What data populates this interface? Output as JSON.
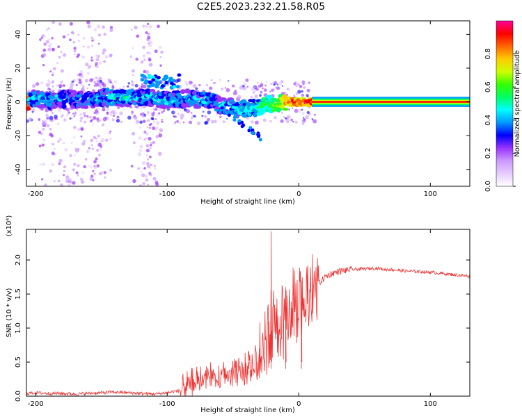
{
  "title": "C2E5.2023.232.21.58.R05",
  "chart_data": [
    {
      "type": "heatmap",
      "title": "C2E5.2023.232.21.58.R05",
      "xlabel": "Height of straight line (km)",
      "ylabel": "Frequency (Hz)",
      "xlim": [
        -207,
        130
      ],
      "ylim": [
        -50,
        48
      ],
      "xticks": [
        -200,
        -100,
        0,
        100
      ],
      "yticks": [
        -40,
        -20,
        0,
        20,
        40
      ],
      "xtick_labels": [
        "-200",
        "-100",
        "0",
        "100"
      ],
      "ytick_labels": [
        "-40",
        "-20",
        "0",
        "20",
        "40"
      ],
      "colorbar": {
        "label": "Normalized spectral amplitude",
        "range": [
          0,
          1
        ],
        "ticks": [
          0.0,
          0.2,
          0.4,
          0.6,
          0.8
        ],
        "tick_labels": [
          "0.0",
          "0.2",
          "0.4",
          "0.6",
          "0.8"
        ],
        "colormap": [
          "#ffffff",
          "#e6ccff",
          "#cc99ff",
          "#9933ff",
          "#0000ff",
          "#0099ff",
          "#00ffff",
          "#00ff66",
          "#33ff00",
          "#ccff00",
          "#ffcc00",
          "#ff6600",
          "#ff0000",
          "#ff0099"
        ]
      },
      "ridge": [
        {
          "x": -205,
          "y": 2,
          "amp": 0.45
        },
        {
          "x": -190,
          "y": 1,
          "amp": 0.4
        },
        {
          "x": -175,
          "y": 2,
          "amp": 0.38
        },
        {
          "x": -160,
          "y": 1,
          "amp": 0.36
        },
        {
          "x": -145,
          "y": 3,
          "amp": 0.42
        },
        {
          "x": -130,
          "y": 2,
          "amp": 0.44
        },
        {
          "x": -115,
          "y": 3,
          "amp": 0.4
        },
        {
          "x": -100,
          "y": 1,
          "amp": 0.42
        },
        {
          "x": -85,
          "y": 2,
          "amp": 0.4
        },
        {
          "x": -70,
          "y": 1,
          "amp": 0.42
        },
        {
          "x": -60,
          "y": -2,
          "amp": 0.38
        },
        {
          "x": -50,
          "y": -3,
          "amp": 0.4
        },
        {
          "x": -40,
          "y": -4,
          "amp": 0.45
        },
        {
          "x": -30,
          "y": -3,
          "amp": 0.5
        },
        {
          "x": -20,
          "y": -1,
          "amp": 0.6
        },
        {
          "x": -10,
          "y": 0,
          "amp": 0.8
        },
        {
          "x": 0,
          "y": 0,
          "amp": 0.85
        },
        {
          "x": 10,
          "y": 0,
          "amp": 0.9
        },
        {
          "x": 130,
          "y": 0,
          "amp": 0.95
        }
      ]
    },
    {
      "type": "line",
      "xlabel": "Height of straight line (km)",
      "ylabel": "SNR (10 * v/v)",
      "y_multiplier": "(x10⁴)",
      "xlim": [
        -207,
        130
      ],
      "ylim": [
        0,
        2.45
      ],
      "xticks": [
        -200,
        -100,
        0,
        100
      ],
      "yticks": [
        0.0,
        0.5,
        1.0,
        1.5,
        2.0
      ],
      "xtick_labels": [
        "-200",
        "-100",
        "0",
        "100"
      ],
      "ytick_labels": [
        "0.0",
        "0.5",
        "1.0",
        "1.5",
        "2.0"
      ],
      "series": [
        {
          "color": "#ee3333",
          "x": [
            -207,
            -200,
            -190,
            -180,
            -170,
            -160,
            -150,
            -140,
            -130,
            -120,
            -110,
            -100,
            -95,
            -90,
            -86,
            -80,
            -75,
            -70,
            -65,
            -60,
            -55,
            -50,
            -45,
            -40,
            -35,
            -30,
            -25,
            -22,
            -20,
            -18,
            -15,
            -10,
            -5,
            0,
            5,
            10,
            15,
            20,
            25,
            30,
            40,
            50,
            60,
            65,
            70,
            75,
            80,
            90,
            100,
            110,
            120,
            130
          ],
          "y": [
            0.04,
            0.05,
            0.04,
            0.04,
            0.03,
            0.04,
            0.05,
            0.06,
            0.05,
            0.04,
            0.03,
            0.05,
            0.07,
            0.08,
            0.15,
            0.22,
            0.25,
            0.28,
            0.3,
            0.32,
            0.34,
            0.36,
            0.38,
            0.42,
            0.5,
            0.6,
            0.8,
            1.0,
            1.05,
            1.1,
            1.2,
            1.3,
            1.35,
            1.4,
            1.48,
            1.55,
            1.65,
            1.75,
            1.8,
            1.83,
            1.86,
            1.87,
            1.88,
            1.86,
            1.86,
            1.85,
            1.84,
            1.83,
            1.82,
            1.8,
            1.78,
            1.76
          ],
          "spikes": [
            {
              "x": -21,
              "y": 2.42
            },
            {
              "x": -38,
              "y": 0.45
            },
            {
              "x": -30,
              "y": 0.7
            },
            {
              "x": -10,
              "y": 1.6
            },
            {
              "x": 2,
              "y": 1.7
            }
          ]
        }
      ]
    }
  ]
}
